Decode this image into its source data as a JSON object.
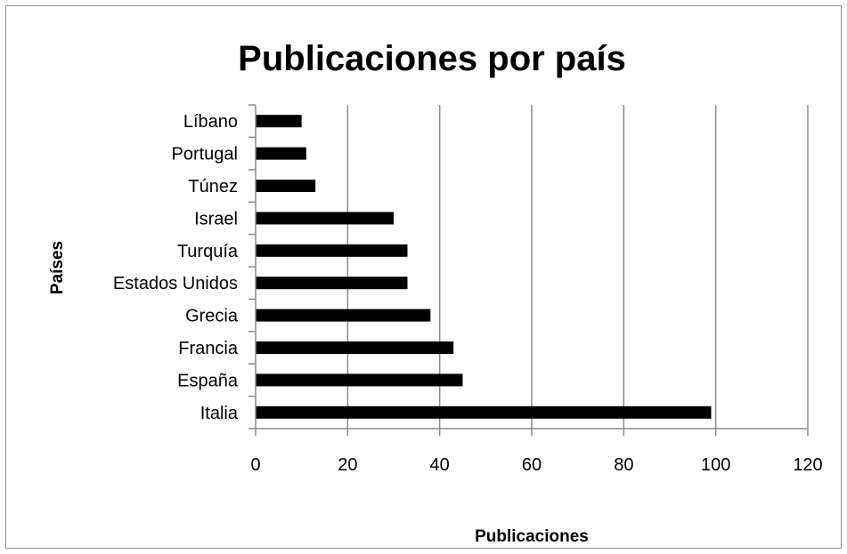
{
  "chart_data": {
    "type": "bar",
    "orientation": "horizontal",
    "title": "Publicaciones por país",
    "xlabel": "Publicaciones",
    "ylabel": "Países",
    "categories": [
      "Italia",
      "España",
      "Francia",
      "Grecia",
      "Estados Unidos",
      "Turquía",
      "Israel",
      "Túnez",
      "Portugal",
      "Líbano"
    ],
    "values": [
      99,
      45,
      43,
      38,
      33,
      33,
      30,
      13,
      11,
      10
    ],
    "xlim": [
      0,
      120
    ],
    "xticks": [
      0,
      20,
      40,
      60,
      80,
      100,
      120
    ],
    "grid": "vertical",
    "legend": "none",
    "bar_color": "#000000",
    "grid_color": "#8c8c8c"
  }
}
